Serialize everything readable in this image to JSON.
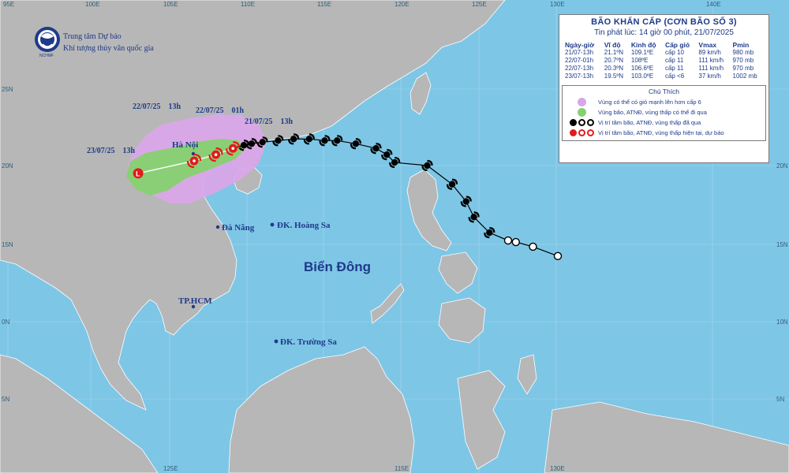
{
  "header": {
    "title": "BÃO KHẨN CẤP (CƠN BÃO SỐ 3)",
    "issued": "Tin phát lúc: 14 giờ 00 phút, 21/07/2025"
  },
  "organization": {
    "line1": "Trung tâm Dự báo",
    "line2": "Khí tượng thủy văn quốc gia"
  },
  "advisory": {
    "headers": [
      "Ngày-giờ",
      "Vĩ độ",
      "Kinh độ",
      "Cấp gió",
      "Vmax",
      "Pmin"
    ],
    "rows": [
      [
        "21/07-13h",
        "21.1ºN",
        "109.1ºE",
        "cấp 10",
        "89 km/h",
        "980 mb"
      ],
      [
        "22/07-01h",
        "20.7ºN",
        "108ºE",
        "cấp 11",
        "111 km/h",
        "970 mb"
      ],
      [
        "22/07-13h",
        "20.3ºN",
        "106.6ºE",
        "cấp 11",
        "111 km/h",
        "970 mb"
      ],
      [
        "23/07-13h",
        "19.5ºN",
        "103.0ºE",
        "cấp <6",
        "37 km/h",
        "1002 mb"
      ]
    ]
  },
  "legend": {
    "title": "Chú Thích",
    "items": [
      {
        "text": "Vùng có thể có gió mạnh lên hơn cấp 6",
        "color": "#d9a6e8"
      },
      {
        "text": "Vùng bão, ATNĐ, vùng thấp có thể đi qua",
        "color": "#86d16f"
      },
      {
        "text": "Vị trí tâm bão, ATNĐ, vùng thấp đã qua",
        "color": "#000000"
      },
      {
        "text": "Vị trí tâm bão, ATNĐ, vùng thấp hiện tại, dự báo",
        "color": "#e31b1b"
      }
    ]
  },
  "places": [
    {
      "name": "Hà Nội"
    },
    {
      "name": "Đà Nẵng"
    },
    {
      "name": "ĐK. Hoàng Sa"
    },
    {
      "name": "TP.HCM"
    },
    {
      "name": "ĐK. Trường Sa"
    }
  ],
  "sea_label": "Biển Đông",
  "time_labels": [
    "22/07/25    13h",
    "22/07/25    01h",
    "21/07/25    13h",
    "23/07/25    13h"
  ],
  "grid": {
    "top": [
      "95E",
      "100E",
      "105E",
      "110E",
      "115E",
      "120E",
      "125E",
      "130E",
      "140E"
    ],
    "bottom": [
      "125E",
      "115E",
      "130E"
    ],
    "left": [
      "25N",
      "20N",
      "15N",
      "0N",
      "5N"
    ],
    "right": [
      "20N",
      "15N",
      "10N",
      "5N"
    ]
  },
  "colors": {
    "sea": "#7ec6e6",
    "land": "#b7b7b7",
    "purple_zone": "#d9a6e8",
    "green_zone": "#86d16f",
    "past_track": "#000000",
    "forecast": "#e31b1b"
  },
  "track": {
    "past": [
      {
        "lon": 130.0,
        "lat": 14.2,
        "icon": "low-open"
      },
      {
        "lon": 128.4,
        "lat": 14.8,
        "icon": "low-open"
      },
      {
        "lon": 127.3,
        "lat": 15.1,
        "icon": "low-open"
      },
      {
        "lon": 126.8,
        "lat": 15.2,
        "icon": "low-open"
      },
      {
        "lon": 125.6,
        "lat": 15.7,
        "icon": "storm"
      },
      {
        "lon": 124.6,
        "lat": 16.7,
        "icon": "storm"
      },
      {
        "lon": 124.1,
        "lat": 17.7,
        "icon": "storm"
      },
      {
        "lon": 123.2,
        "lat": 18.8,
        "icon": "storm"
      },
      {
        "lon": 121.6,
        "lat": 20.0,
        "icon": "storm"
      },
      {
        "lon": 119.5,
        "lat": 20.2,
        "icon": "storm"
      },
      {
        "lon": 119.0,
        "lat": 20.7,
        "icon": "storm"
      },
      {
        "lon": 118.3,
        "lat": 21.1,
        "icon": "storm"
      },
      {
        "lon": 117.0,
        "lat": 21.4,
        "icon": "storm"
      },
      {
        "lon": 115.8,
        "lat": 21.6,
        "icon": "storm"
      },
      {
        "lon": 115.0,
        "lat": 21.6,
        "icon": "storm"
      },
      {
        "lon": 114.0,
        "lat": 21.7,
        "icon": "storm"
      },
      {
        "lon": 113.0,
        "lat": 21.7,
        "icon": "storm"
      },
      {
        "lon": 112.0,
        "lat": 21.6,
        "icon": "storm"
      },
      {
        "lon": 111.0,
        "lat": 21.5,
        "icon": "storm"
      },
      {
        "lon": 110.3,
        "lat": 21.4,
        "icon": "storm"
      },
      {
        "lon": 109.8,
        "lat": 21.3,
        "icon": "storm"
      }
    ],
    "forecast": [
      {
        "time": "21/07-13h",
        "lon": 109.1,
        "lat": 21.1,
        "icon": "storm"
      },
      {
        "time": "22/07-01h",
        "lon": 108.0,
        "lat": 20.7,
        "icon": "storm"
      },
      {
        "time": "22/07-13h",
        "lon": 106.6,
        "lat": 20.3,
        "icon": "storm"
      },
      {
        "time": "23/07-13h",
        "lon": 103.0,
        "lat": 19.5,
        "icon": "low"
      }
    ]
  }
}
